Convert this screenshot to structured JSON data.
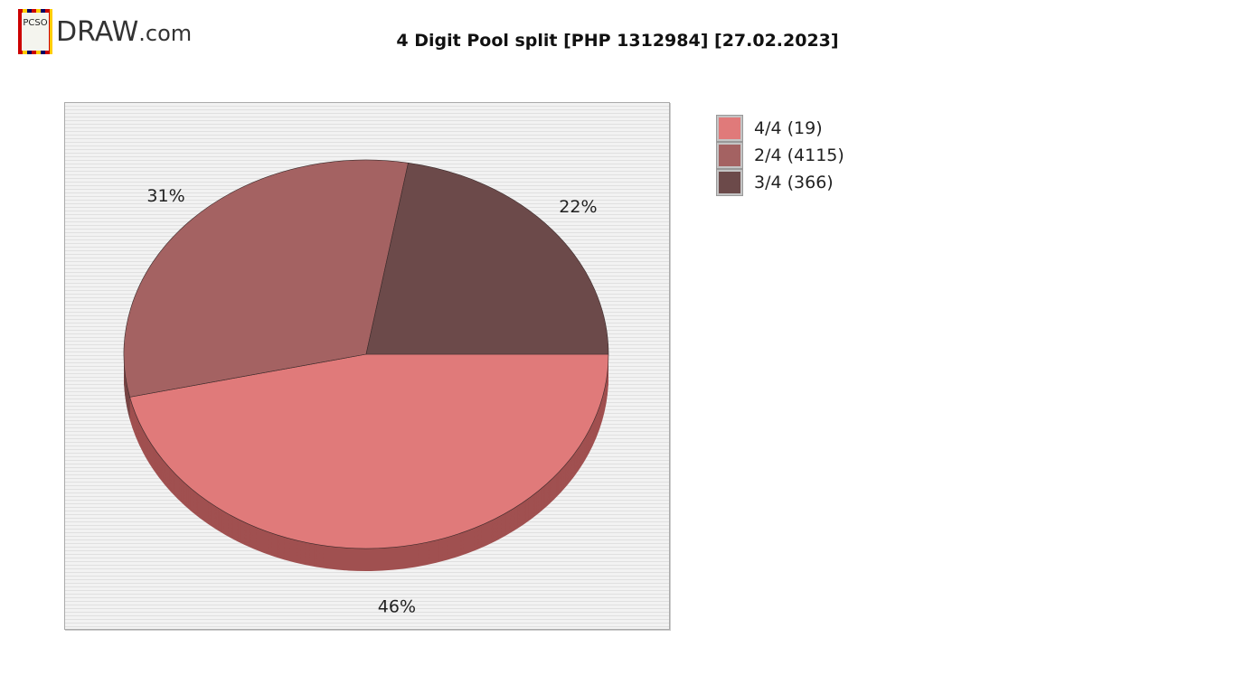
{
  "logo": {
    "badge": "PCSO",
    "text": "DRAW",
    "suffix": ".com"
  },
  "chart_data": {
    "type": "pie",
    "title": "4 Digit Pool split [PHP 1312984] [27.02.2023]",
    "style": "3d",
    "legend_position": "right",
    "slices": [
      {
        "label": "4/4 (19)",
        "percent": 46,
        "percent_label": "46%",
        "color": "#e07a7a",
        "side_color": "#a05050"
      },
      {
        "label": "2/4 (4115)",
        "percent": 31,
        "percent_label": "31%",
        "color": "#a46262",
        "side_color": "#774545"
      },
      {
        "label": "3/4 (366)",
        "percent": 22,
        "percent_label": "22%",
        "color": "#6c4a4a",
        "side_color": "#4c3232"
      }
    ]
  }
}
